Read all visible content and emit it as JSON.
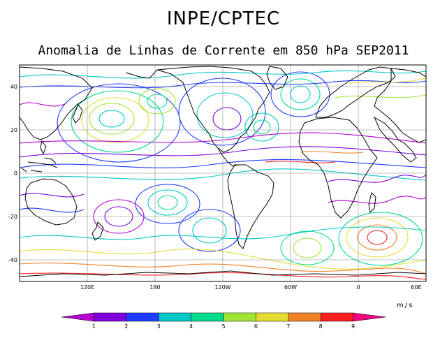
{
  "header": {
    "title": "INPE/CPTEC",
    "subtitle": "Anomalia de Linhas de Corrente em 850 hPa SEP2011"
  },
  "map": {
    "projection": "cylindrical-equidistant",
    "lon_range": [
      60,
      420
    ],
    "lat_range": [
      -50,
      50
    ],
    "x_ticks": [
      {
        "lon": 120,
        "label": "120E"
      },
      {
        "lon": 180,
        "label": "180"
      },
      {
        "lon": 240,
        "label": "120W"
      },
      {
        "lon": 300,
        "label": "60W"
      },
      {
        "lon": 360,
        "label": "0"
      },
      {
        "lon": 420,
        "label": "60E"
      }
    ],
    "y_ticks": [
      {
        "lat": 40,
        "label": "40"
      },
      {
        "lat": 20,
        "label": "20"
      },
      {
        "lat": 0,
        "label": "0"
      },
      {
        "lat": -20,
        "label": "-20"
      },
      {
        "lat": -40,
        "label": "-40"
      }
    ],
    "gridlines": true,
    "features": [
      "coastlines",
      "streamlines"
    ]
  },
  "colorbar": {
    "units": "m/s",
    "labels": [
      "1",
      "2",
      "3",
      "4",
      "5",
      "6",
      "7",
      "8",
      "9"
    ],
    "colors": [
      "#b400d2",
      "#7d00dc",
      "#1e3cff",
      "#00c8c8",
      "#00dc8c",
      "#a0e632",
      "#e6dc32",
      "#f08228",
      "#fa1e1e",
      "#f00082"
    ]
  }
}
